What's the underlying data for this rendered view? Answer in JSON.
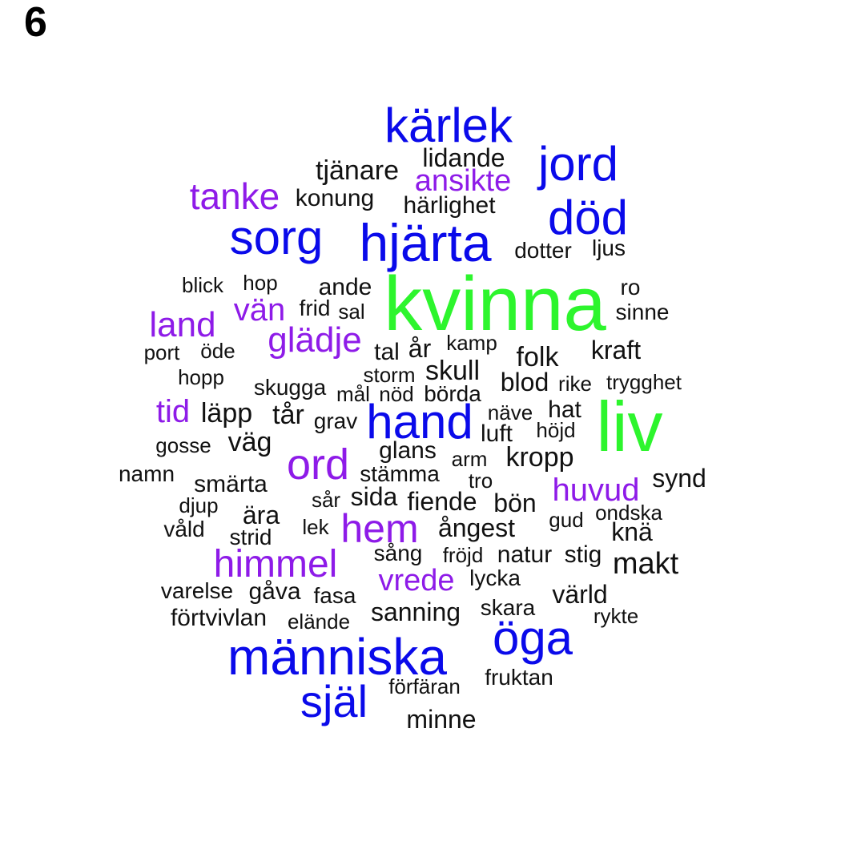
{
  "panel_label": "6",
  "colors": {
    "green": "#2df52d",
    "blue": "#0a0aea",
    "purple": "#8e1be8",
    "black": "#111111"
  },
  "words": [
    {
      "text": "kvinna",
      "tier": "green"
    },
    {
      "text": "liv",
      "tier": "green"
    },
    {
      "text": "kärlek",
      "tier": "blue"
    },
    {
      "text": "jord",
      "tier": "blue"
    },
    {
      "text": "död",
      "tier": "blue"
    },
    {
      "text": "hjärta",
      "tier": "blue"
    },
    {
      "text": "sorg",
      "tier": "blue"
    },
    {
      "text": "hand",
      "tier": "blue"
    },
    {
      "text": "människa",
      "tier": "blue"
    },
    {
      "text": "öga",
      "tier": "blue"
    },
    {
      "text": "själ",
      "tier": "blue"
    },
    {
      "text": "tanke",
      "tier": "purple"
    },
    {
      "text": "ansikte",
      "tier": "purple"
    },
    {
      "text": "land",
      "tier": "purple"
    },
    {
      "text": "vän",
      "tier": "purple"
    },
    {
      "text": "glädje",
      "tier": "purple"
    },
    {
      "text": "tid",
      "tier": "purple"
    },
    {
      "text": "ord",
      "tier": "purple"
    },
    {
      "text": "huvud",
      "tier": "purple"
    },
    {
      "text": "hem",
      "tier": "purple"
    },
    {
      "text": "himmel",
      "tier": "purple"
    },
    {
      "text": "vrede",
      "tier": "purple"
    },
    {
      "text": "lidande",
      "tier": "black"
    },
    {
      "text": "tjänare",
      "tier": "black"
    },
    {
      "text": "konung",
      "tier": "black"
    },
    {
      "text": "härlighet",
      "tier": "black"
    },
    {
      "text": "dotter",
      "tier": "black"
    },
    {
      "text": "ljus",
      "tier": "black"
    },
    {
      "text": "blick",
      "tier": "black"
    },
    {
      "text": "hop",
      "tier": "black"
    },
    {
      "text": "ande",
      "tier": "black"
    },
    {
      "text": "ro",
      "tier": "black"
    },
    {
      "text": "frid",
      "tier": "black"
    },
    {
      "text": "sal",
      "tier": "black"
    },
    {
      "text": "sinne",
      "tier": "black"
    },
    {
      "text": "port",
      "tier": "black"
    },
    {
      "text": "öde",
      "tier": "black"
    },
    {
      "text": "tal",
      "tier": "black"
    },
    {
      "text": "år",
      "tier": "black"
    },
    {
      "text": "kamp",
      "tier": "black"
    },
    {
      "text": "folk",
      "tier": "black"
    },
    {
      "text": "kraft",
      "tier": "black"
    },
    {
      "text": "hopp",
      "tier": "black"
    },
    {
      "text": "skugga",
      "tier": "black"
    },
    {
      "text": "storm",
      "tier": "black"
    },
    {
      "text": "skull",
      "tier": "black"
    },
    {
      "text": "blod",
      "tier": "black"
    },
    {
      "text": "rike",
      "tier": "black"
    },
    {
      "text": "trygghet",
      "tier": "black"
    },
    {
      "text": "mål",
      "tier": "black"
    },
    {
      "text": "nöd",
      "tier": "black"
    },
    {
      "text": "börda",
      "tier": "black"
    },
    {
      "text": "läpp",
      "tier": "black"
    },
    {
      "text": "tår",
      "tier": "black"
    },
    {
      "text": "grav",
      "tier": "black"
    },
    {
      "text": "näve",
      "tier": "black"
    },
    {
      "text": "hat",
      "tier": "black"
    },
    {
      "text": "gosse",
      "tier": "black"
    },
    {
      "text": "väg",
      "tier": "black"
    },
    {
      "text": "glans",
      "tier": "black"
    },
    {
      "text": "luft",
      "tier": "black"
    },
    {
      "text": "höjd",
      "tier": "black"
    },
    {
      "text": "namn",
      "tier": "black"
    },
    {
      "text": "smärta",
      "tier": "black"
    },
    {
      "text": "stämma",
      "tier": "black"
    },
    {
      "text": "arm",
      "tier": "black"
    },
    {
      "text": "kropp",
      "tier": "black"
    },
    {
      "text": "synd",
      "tier": "black"
    },
    {
      "text": "djup",
      "tier": "black"
    },
    {
      "text": "sår",
      "tier": "black"
    },
    {
      "text": "sida",
      "tier": "black"
    },
    {
      "text": "tro",
      "tier": "black"
    },
    {
      "text": "ära",
      "tier": "black"
    },
    {
      "text": "fiende",
      "tier": "black"
    },
    {
      "text": "bön",
      "tier": "black"
    },
    {
      "text": "gud",
      "tier": "black"
    },
    {
      "text": "ondska",
      "tier": "black"
    },
    {
      "text": "våld",
      "tier": "black"
    },
    {
      "text": "lek",
      "tier": "black"
    },
    {
      "text": "strid",
      "tier": "black"
    },
    {
      "text": "ångest",
      "tier": "black"
    },
    {
      "text": "knä",
      "tier": "black"
    },
    {
      "text": "sång",
      "tier": "black"
    },
    {
      "text": "fröjd",
      "tier": "black"
    },
    {
      "text": "natur",
      "tier": "black"
    },
    {
      "text": "stig",
      "tier": "black"
    },
    {
      "text": "makt",
      "tier": "black"
    },
    {
      "text": "lycka",
      "tier": "black"
    },
    {
      "text": "varelse",
      "tier": "black"
    },
    {
      "text": "gåva",
      "tier": "black"
    },
    {
      "text": "fasa",
      "tier": "black"
    },
    {
      "text": "värld",
      "tier": "black"
    },
    {
      "text": "förtvivlan",
      "tier": "black"
    },
    {
      "text": "elände",
      "tier": "black"
    },
    {
      "text": "sanning",
      "tier": "black"
    },
    {
      "text": "skara",
      "tier": "black"
    },
    {
      "text": "rykte",
      "tier": "black"
    },
    {
      "text": "förfäran",
      "tier": "black"
    },
    {
      "text": "fruktan",
      "tier": "black"
    },
    {
      "text": "minne",
      "tier": "black"
    }
  ]
}
